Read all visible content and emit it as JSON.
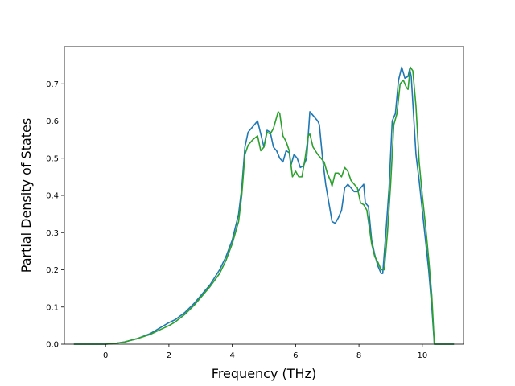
{
  "chart_data": {
    "type": "line",
    "title": "",
    "xlabel": "Frequency (THz)",
    "ylabel": "Partial Density of States",
    "xlim": [
      -1.3,
      11.3
    ],
    "ylim": [
      0.0,
      0.8
    ],
    "xticks": [
      0,
      2,
      4,
      6,
      8,
      10
    ],
    "yticks": [
      0.0,
      0.1,
      0.2,
      0.3,
      0.4,
      0.5,
      0.6,
      0.7
    ],
    "xtick_labels": [
      "0",
      "2",
      "4",
      "6",
      "8",
      "10"
    ],
    "ytick_labels": [
      "0.0",
      "0.1",
      "0.2",
      "0.3",
      "0.4",
      "0.5",
      "0.6",
      "0.7"
    ],
    "grid": false,
    "legend": "none",
    "series": [
      {
        "color": "#1f77b4",
        "points": [
          [
            -1.0,
            0.0
          ],
          [
            0.0,
            0.0
          ],
          [
            0.3,
            0.002
          ],
          [
            0.6,
            0.006
          ],
          [
            1.0,
            0.015
          ],
          [
            1.4,
            0.028
          ],
          [
            1.8,
            0.048
          ],
          [
            2.0,
            0.058
          ],
          [
            2.2,
            0.066
          ],
          [
            2.5,
            0.085
          ],
          [
            2.8,
            0.11
          ],
          [
            3.0,
            0.13
          ],
          [
            3.3,
            0.16
          ],
          [
            3.6,
            0.2
          ],
          [
            3.8,
            0.235
          ],
          [
            4.0,
            0.28
          ],
          [
            4.2,
            0.35
          ],
          [
            4.3,
            0.42
          ],
          [
            4.4,
            0.53
          ],
          [
            4.5,
            0.57
          ],
          [
            4.65,
            0.585
          ],
          [
            4.8,
            0.6
          ],
          [
            4.9,
            0.565
          ],
          [
            5.0,
            0.53
          ],
          [
            5.1,
            0.575
          ],
          [
            5.2,
            0.57
          ],
          [
            5.3,
            0.53
          ],
          [
            5.4,
            0.52
          ],
          [
            5.5,
            0.5
          ],
          [
            5.6,
            0.49
          ],
          [
            5.7,
            0.52
          ],
          [
            5.8,
            0.515
          ],
          [
            5.85,
            0.48
          ],
          [
            5.95,
            0.51
          ],
          [
            6.05,
            0.5
          ],
          [
            6.15,
            0.475
          ],
          [
            6.25,
            0.48
          ],
          [
            6.35,
            0.5
          ],
          [
            6.45,
            0.625
          ],
          [
            6.55,
            0.615
          ],
          [
            6.7,
            0.6
          ],
          [
            6.75,
            0.59
          ],
          [
            6.85,
            0.5
          ],
          [
            6.95,
            0.43
          ],
          [
            7.05,
            0.38
          ],
          [
            7.15,
            0.33
          ],
          [
            7.25,
            0.325
          ],
          [
            7.35,
            0.34
          ],
          [
            7.45,
            0.36
          ],
          [
            7.55,
            0.42
          ],
          [
            7.65,
            0.43
          ],
          [
            7.75,
            0.42
          ],
          [
            7.85,
            0.41
          ],
          [
            7.95,
            0.41
          ],
          [
            8.05,
            0.42
          ],
          [
            8.15,
            0.43
          ],
          [
            8.2,
            0.38
          ],
          [
            8.3,
            0.37
          ],
          [
            8.4,
            0.28
          ],
          [
            8.5,
            0.24
          ],
          [
            8.6,
            0.21
          ],
          [
            8.7,
            0.19
          ],
          [
            8.75,
            0.19
          ],
          [
            8.85,
            0.3
          ],
          [
            8.95,
            0.42
          ],
          [
            9.05,
            0.6
          ],
          [
            9.15,
            0.62
          ],
          [
            9.25,
            0.71
          ],
          [
            9.35,
            0.745
          ],
          [
            9.45,
            0.715
          ],
          [
            9.55,
            0.72
          ],
          [
            9.6,
            0.74
          ],
          [
            9.65,
            0.72
          ],
          [
            9.7,
            0.65
          ],
          [
            9.8,
            0.51
          ],
          [
            9.9,
            0.44
          ],
          [
            10.0,
            0.36
          ],
          [
            10.1,
            0.28
          ],
          [
            10.2,
            0.2
          ],
          [
            10.3,
            0.1
          ],
          [
            10.38,
            0.0
          ],
          [
            11.0,
            0.0
          ]
        ]
      },
      {
        "color": "#2ca02c",
        "points": [
          [
            -1.0,
            0.0
          ],
          [
            0.0,
            0.0
          ],
          [
            0.3,
            0.002
          ],
          [
            0.6,
            0.006
          ],
          [
            1.0,
            0.015
          ],
          [
            1.4,
            0.026
          ],
          [
            1.8,
            0.042
          ],
          [
            2.0,
            0.05
          ],
          [
            2.2,
            0.06
          ],
          [
            2.5,
            0.08
          ],
          [
            2.8,
            0.105
          ],
          [
            3.0,
            0.125
          ],
          [
            3.3,
            0.155
          ],
          [
            3.6,
            0.19
          ],
          [
            3.8,
            0.225
          ],
          [
            4.0,
            0.27
          ],
          [
            4.2,
            0.33
          ],
          [
            4.3,
            0.4
          ],
          [
            4.4,
            0.51
          ],
          [
            4.5,
            0.535
          ],
          [
            4.65,
            0.55
          ],
          [
            4.8,
            0.56
          ],
          [
            4.9,
            0.52
          ],
          [
            5.0,
            0.53
          ],
          [
            5.1,
            0.57
          ],
          [
            5.2,
            0.565
          ],
          [
            5.3,
            0.58
          ],
          [
            5.4,
            0.61
          ],
          [
            5.45,
            0.625
          ],
          [
            5.5,
            0.62
          ],
          [
            5.6,
            0.56
          ],
          [
            5.7,
            0.545
          ],
          [
            5.8,
            0.52
          ],
          [
            5.9,
            0.45
          ],
          [
            6.0,
            0.465
          ],
          [
            6.1,
            0.45
          ],
          [
            6.2,
            0.45
          ],
          [
            6.3,
            0.5
          ],
          [
            6.4,
            0.56
          ],
          [
            6.45,
            0.565
          ],
          [
            6.55,
            0.53
          ],
          [
            6.7,
            0.51
          ],
          [
            6.8,
            0.5
          ],
          [
            6.9,
            0.49
          ],
          [
            7.0,
            0.46
          ],
          [
            7.1,
            0.44
          ],
          [
            7.15,
            0.425
          ],
          [
            7.25,
            0.46
          ],
          [
            7.35,
            0.46
          ],
          [
            7.45,
            0.45
          ],
          [
            7.55,
            0.475
          ],
          [
            7.65,
            0.465
          ],
          [
            7.75,
            0.44
          ],
          [
            7.85,
            0.43
          ],
          [
            7.95,
            0.42
          ],
          [
            8.05,
            0.38
          ],
          [
            8.15,
            0.375
          ],
          [
            8.25,
            0.36
          ],
          [
            8.3,
            0.33
          ],
          [
            8.4,
            0.27
          ],
          [
            8.5,
            0.235
          ],
          [
            8.6,
            0.22
          ],
          [
            8.7,
            0.2
          ],
          [
            8.8,
            0.2
          ],
          [
            8.9,
            0.3
          ],
          [
            9.0,
            0.43
          ],
          [
            9.1,
            0.59
          ],
          [
            9.2,
            0.62
          ],
          [
            9.3,
            0.7
          ],
          [
            9.4,
            0.71
          ],
          [
            9.5,
            0.69
          ],
          [
            9.55,
            0.685
          ],
          [
            9.62,
            0.745
          ],
          [
            9.7,
            0.735
          ],
          [
            9.8,
            0.64
          ],
          [
            9.9,
            0.49
          ],
          [
            10.0,
            0.4
          ],
          [
            10.1,
            0.32
          ],
          [
            10.2,
            0.23
          ],
          [
            10.3,
            0.13
          ],
          [
            10.38,
            0.0
          ],
          [
            11.0,
            0.0
          ]
        ]
      }
    ]
  }
}
